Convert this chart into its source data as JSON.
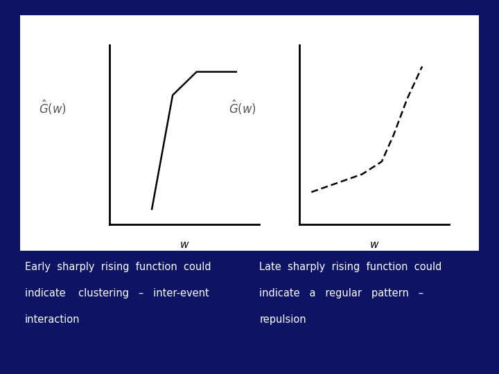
{
  "background_color": "#0d1466",
  "panel_bg": "#ffffff",
  "text_color": "#ffffff",
  "line_color": "#000000",
  "left_curve_x": [
    0.28,
    0.42,
    0.58,
    0.85
  ],
  "left_curve_y": [
    0.08,
    0.72,
    0.85,
    0.85
  ],
  "right_curve_x": [
    0.08,
    0.25,
    0.42,
    0.55,
    0.63,
    0.72,
    0.82
  ],
  "right_curve_y": [
    0.18,
    0.23,
    0.28,
    0.35,
    0.5,
    0.7,
    0.88
  ],
  "caption_left": [
    "Early  sharply  rising  function  could",
    "indicate    clustering   –   inter-event",
    "interaction"
  ],
  "caption_right": [
    "Late  sharply  rising  function  could",
    "indicate   a   regular   pattern   –",
    "repulsion"
  ],
  "font_size_caption": 10.5
}
